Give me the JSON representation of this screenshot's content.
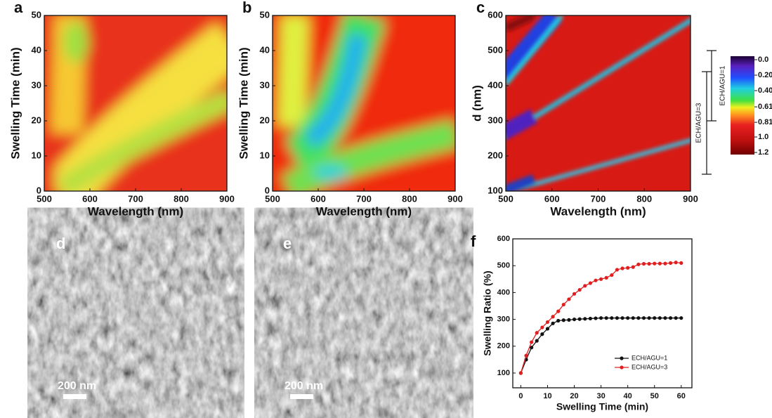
{
  "chart_data": [
    {
      "type": "heatmap",
      "label": "a",
      "x_label": "Wavelength (nm)",
      "y_label": "Swelling Time (min)",
      "xlim": [
        500,
        900
      ],
      "xticks": [
        500,
        600,
        700,
        800,
        900
      ],
      "ylim": [
        0,
        50
      ],
      "yticks": [
        0,
        10,
        20,
        30,
        40,
        50
      ]
    },
    {
      "type": "heatmap",
      "label": "b",
      "x_label": "Wavelength (nm)",
      "y_label": "Swelling Time (min)",
      "xlim": [
        500,
        900
      ],
      "xticks": [
        500,
        600,
        700,
        800,
        900
      ],
      "ylim": [
        0,
        50
      ],
      "yticks": [
        0,
        10,
        20,
        30,
        40,
        50
      ]
    },
    {
      "type": "heatmap",
      "label": "c",
      "x_label": "Wavelength (nm)",
      "y_label": "d (nm)",
      "xlim": [
        500,
        900
      ],
      "xticks": [
        500,
        600,
        700,
        800,
        900
      ],
      "ylim": [
        100,
        600
      ],
      "yticks": [
        100,
        200,
        300,
        400,
        500,
        600
      ],
      "colorbar": {
        "lim": [
          0,
          1.2
        ],
        "ticks": [
          {
            "value": 0,
            "label": "0.0"
          },
          {
            "value": 0.2,
            "label": "0.20"
          },
          {
            "value": 0.4,
            "label": "0.40"
          },
          0.61,
          0.81,
          {
            "value": 1,
            "label": "1.0"
          },
          1.2
        ]
      },
      "annotations": [
        "ECH/AGU=1",
        "ECH/AGU=3"
      ]
    },
    {
      "type": "line",
      "label": "f",
      "x_label": "Swelling Time (min)",
      "y_label": "Swelling Ratio (%)",
      "xlim": [
        -3,
        64
      ],
      "xticks": [
        0,
        10,
        20,
        30,
        40,
        50,
        60
      ],
      "ylim": [
        45,
        600
      ],
      "yticks": [
        100,
        200,
        300,
        400,
        500,
        600
      ],
      "x": [
        0,
        2,
        4,
        6,
        8,
        10,
        12,
        14,
        16,
        18,
        20,
        22,
        24,
        26,
        28,
        30,
        32,
        34,
        36,
        38,
        40,
        42,
        44,
        46,
        48,
        50,
        52,
        54,
        56,
        58,
        60
      ],
      "series": [
        {
          "name": "ECH/AGU=1",
          "color": "#111111",
          "values": [
            100,
            150,
            195,
            220,
            245,
            265,
            285,
            295,
            297,
            298,
            300,
            301,
            302,
            303,
            304,
            305,
            305,
            305,
            305,
            305,
            305,
            305,
            305,
            305,
            305,
            305,
            305,
            305,
            305,
            305,
            305
          ]
        },
        {
          "name": "ECH/AGU=3",
          "color": "#e02020",
          "values": [
            100,
            165,
            215,
            250,
            270,
            290,
            310,
            330,
            355,
            375,
            395,
            410,
            425,
            435,
            445,
            450,
            455,
            465,
            485,
            490,
            492,
            495,
            505,
            507,
            507,
            508,
            508,
            508,
            510,
            512,
            510
          ]
        }
      ],
      "legend": "lower right"
    }
  ],
  "images": [
    {
      "label": "d",
      "scale": "200 nm"
    },
    {
      "label": "e",
      "scale": "200 nm"
    }
  ]
}
